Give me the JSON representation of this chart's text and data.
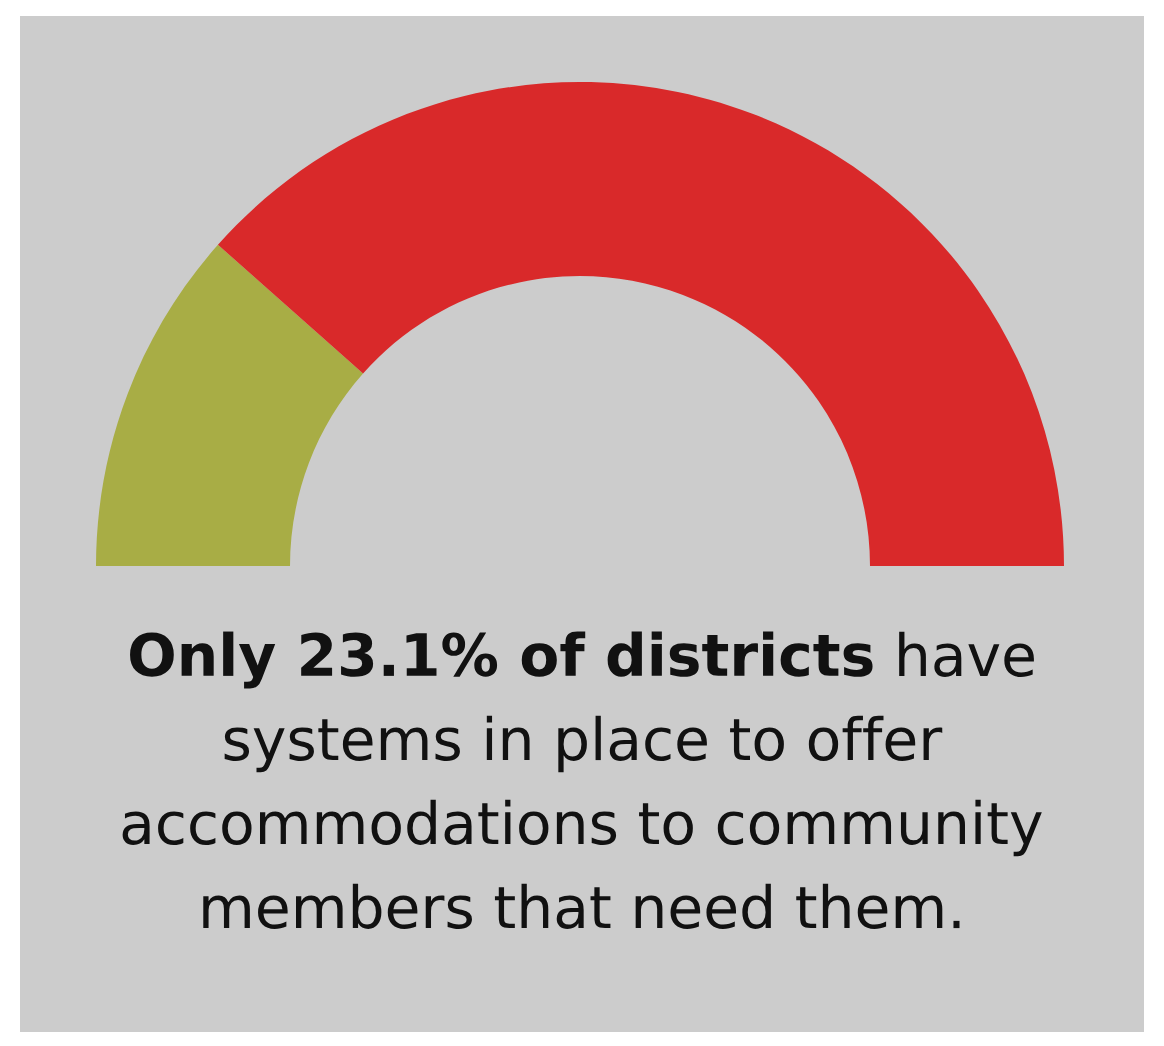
{
  "chart_data": {
    "type": "donut",
    "categories": [
      null,
      null
    ],
    "values": [
      23.1,
      76.9
    ],
    "colors": [
      "#a8ad45",
      "#d9292a"
    ],
    "annotations": [
      "Only 23.1% of districts",
      "have systems in place to offer accommodations to community members that need them."
    ]
  }
}
